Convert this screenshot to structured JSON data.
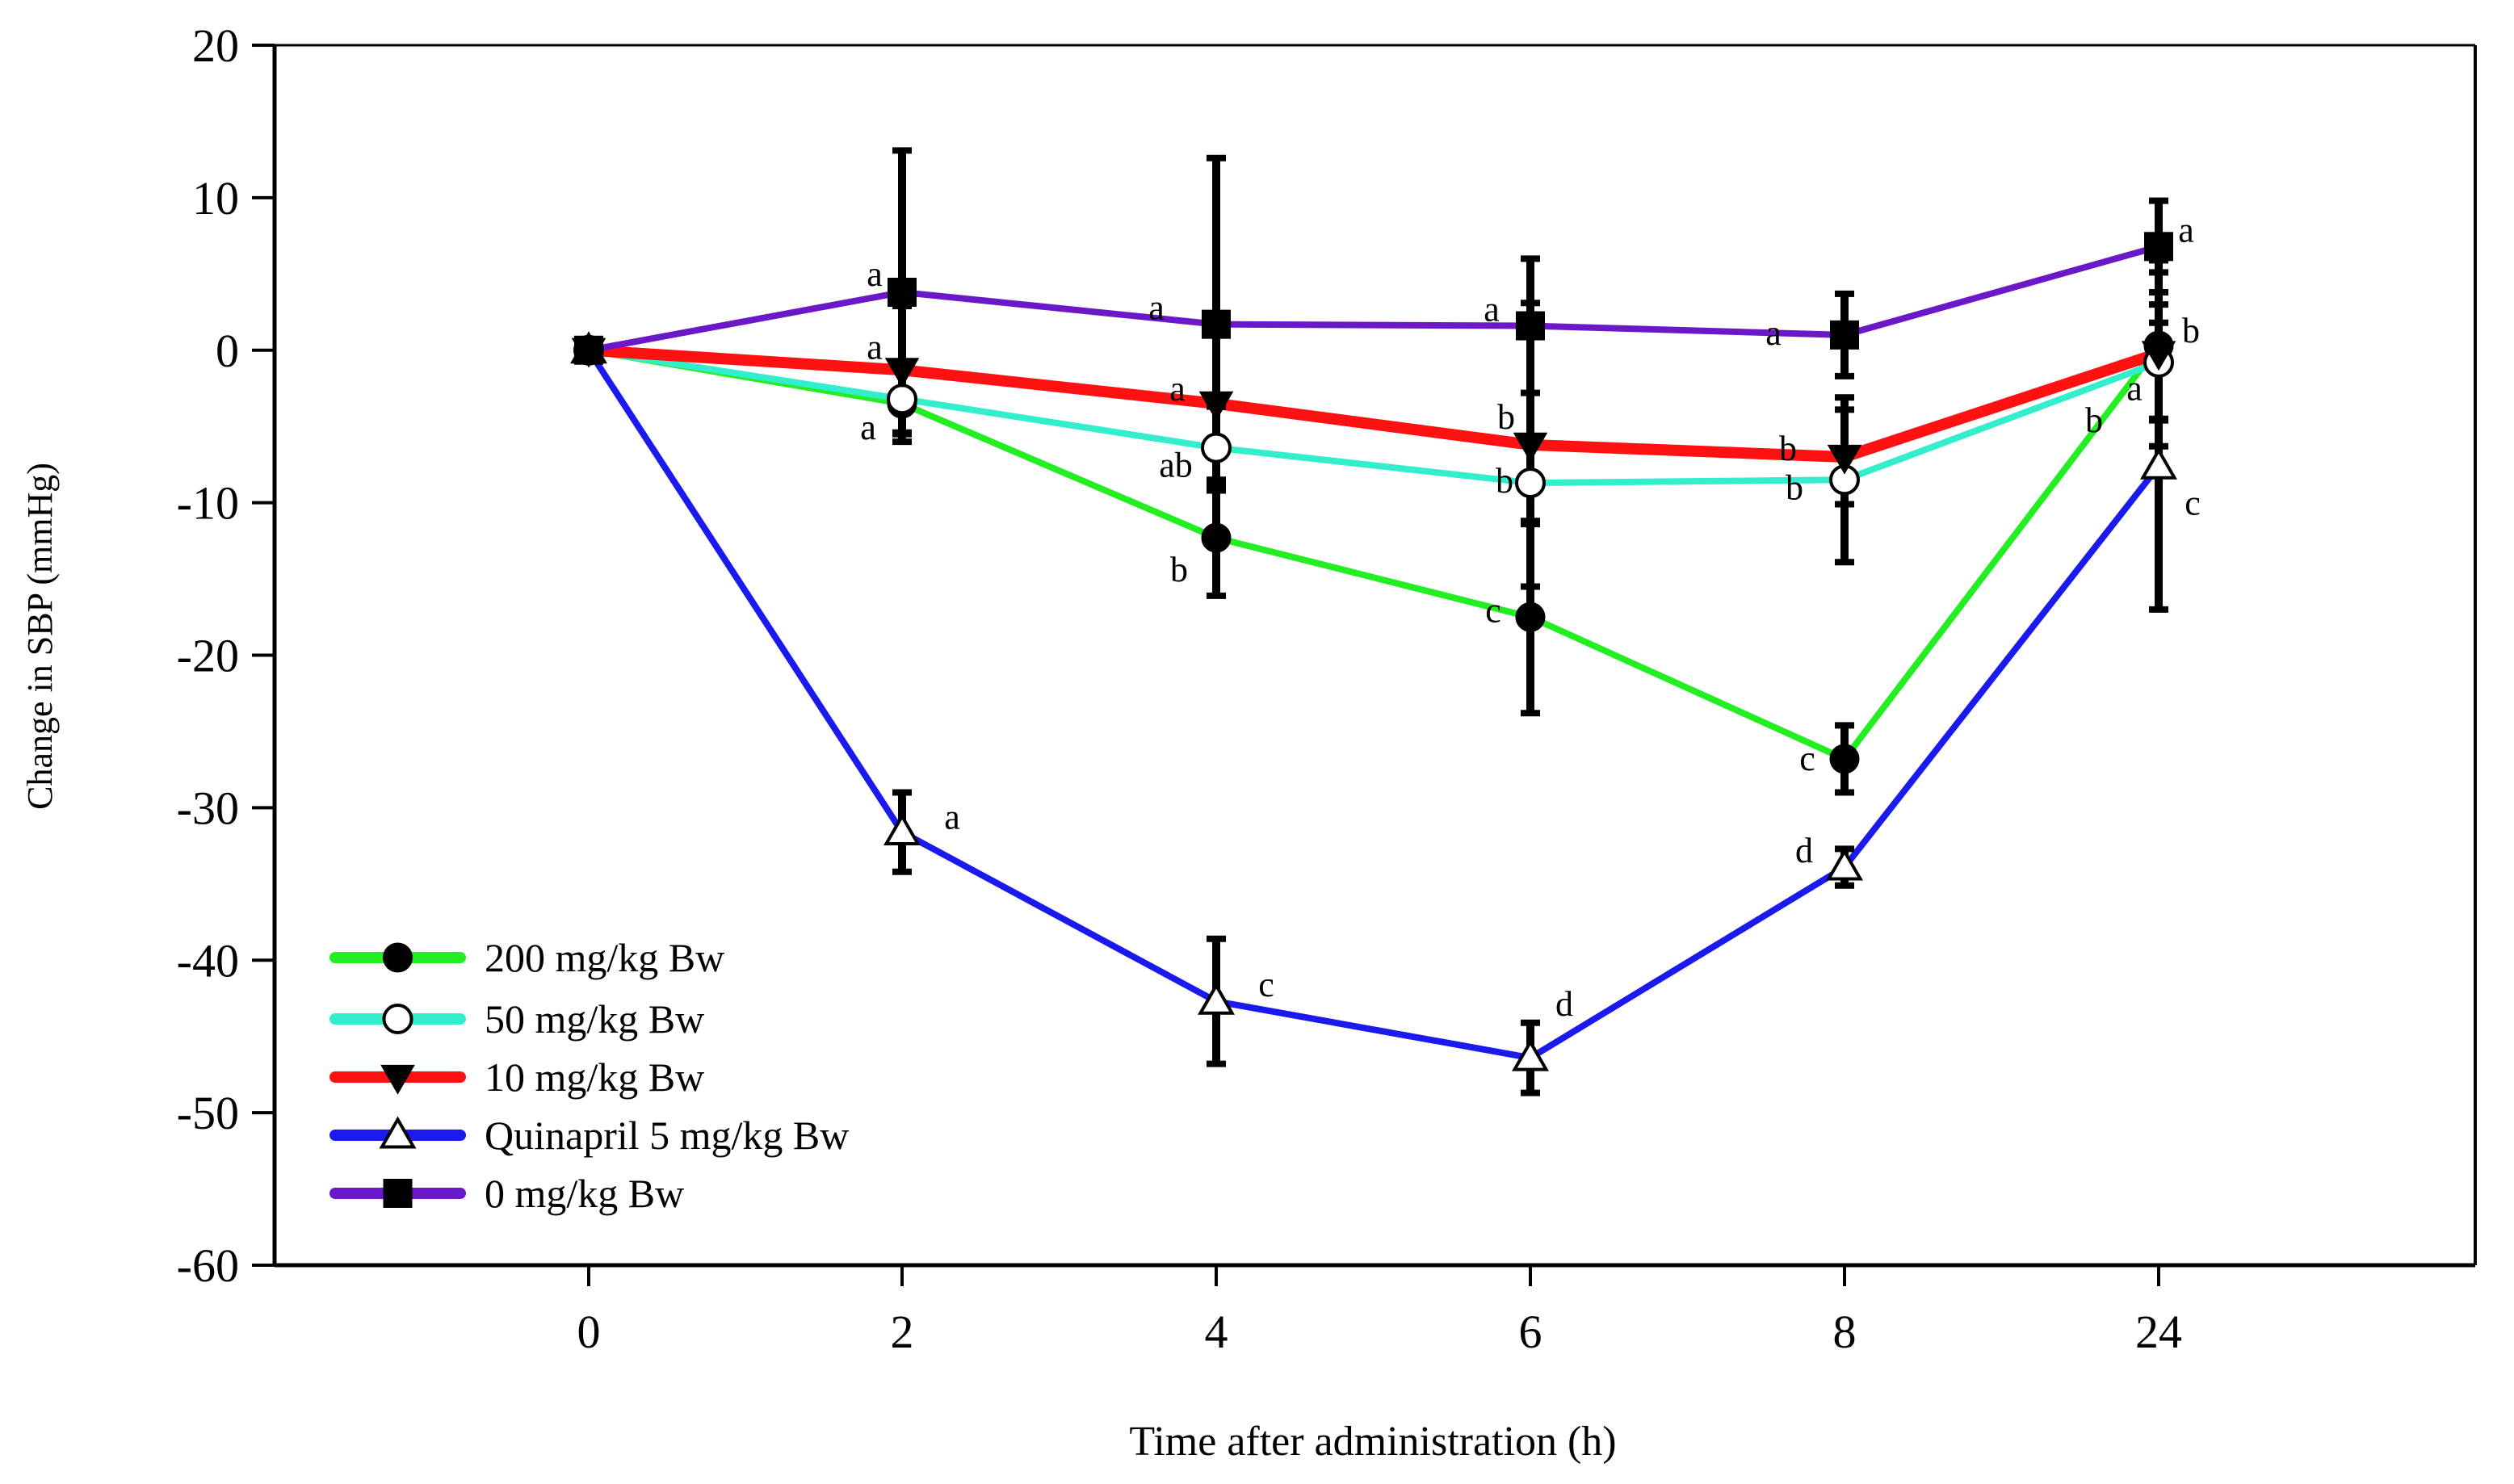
{
  "chart_data": {
    "type": "line",
    "title": "",
    "xlabel": "Time after administration (h)",
    "ylabel": "Change in SBP (mmHg)",
    "categories": [
      "0",
      "2",
      "4",
      "6",
      "8",
      "24"
    ],
    "ylim": [
      -60,
      20
    ],
    "yticks": [
      "20",
      "10",
      "0",
      "-10",
      "-20",
      "-30",
      "-40",
      "-50",
      "-60"
    ],
    "grid": false,
    "legend_position": "bottom-left",
    "series": [
      {
        "name": "200 mg/kg Bw",
        "color": "#22ee22",
        "marker": "filled-circle",
        "values": [
          0,
          -3.5,
          -12.3,
          -17.5,
          -26.8,
          0.3
        ],
        "errors": [
          0,
          2.5,
          3.8,
          6.3,
          2.2,
          4.8
        ],
        "letters": [
          "",
          "a",
          "b",
          "c",
          "c",
          "b"
        ]
      },
      {
        "name": "50 mg/kg Bw",
        "color": "#33eecc",
        "marker": "open-circle",
        "values": [
          0,
          -3.2,
          -6.4,
          -8.7,
          -8.5,
          -0.8
        ],
        "errors": [
          0,
          2.2,
          2.7,
          2.7,
          5.4,
          3.8
        ],
        "letters": [
          "",
          "a",
          "ab",
          "b",
          "b",
          "b"
        ]
      },
      {
        "name": "10 mg/kg Bw",
        "color": "#ff1111",
        "marker": "filled-triangle-down",
        "values": [
          0,
          -1.3,
          -3.5,
          -6.2,
          -7.0,
          -0.2
        ],
        "errors": [
          0,
          4.2,
          5.2,
          9.3,
          3.1,
          6.1
        ],
        "letters": [
          "",
          "a",
          "a",
          "b",
          "b",
          "a"
        ]
      },
      {
        "name": "Quinapril  5 mg/kg Bw",
        "color": "#1a1aee",
        "marker": "open-triangle-up",
        "values": [
          0,
          -31.6,
          -42.7,
          -46.4,
          -33.9,
          -7.6
        ],
        "errors": [
          0,
          2.6,
          4.1,
          2.3,
          1.2,
          9.4
        ],
        "letters": [
          "",
          "a",
          "c",
          "d",
          "d",
          "c"
        ]
      },
      {
        "name": "0 mg/kg Bw",
        "color": "#6a18c8",
        "marker": "filled-square",
        "values": [
          0,
          3.8,
          1.7,
          1.6,
          1.0,
          6.8
        ],
        "errors": [
          0,
          9.3,
          10.9,
          4.4,
          2.7,
          3.0
        ],
        "letters": [
          "",
          "a",
          "a",
          "a",
          "a",
          "a"
        ]
      }
    ]
  }
}
